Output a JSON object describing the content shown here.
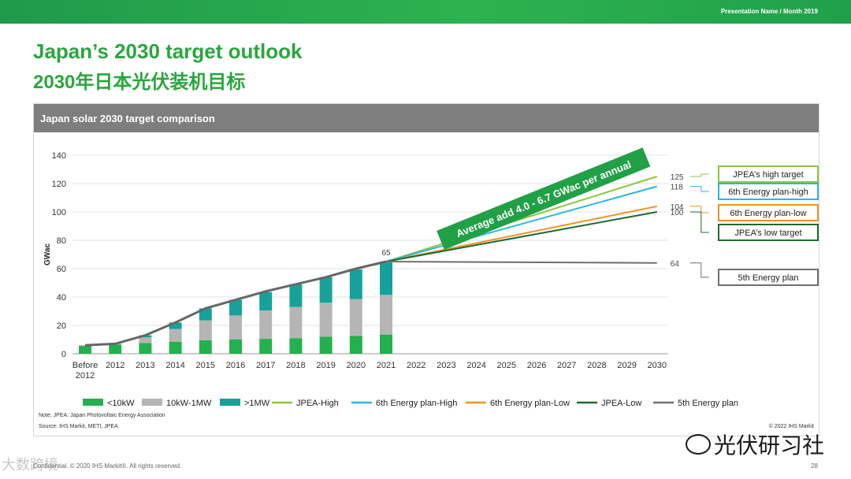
{
  "header": {
    "presentation_name": "Presentation Name / Month 2019"
  },
  "title_en": "Japan’s 2030 target outlook",
  "title_cn": "2030年日本光伏装机目标",
  "panel_title": "Japan solar 2030 target comparison",
  "colors": {
    "lt10kw": "#22b14c",
    "mid": "#b5b5b5",
    "gt1mw": "#16a29a",
    "jpea_high": "#8dc63f",
    "plan6_high": "#2cb5e3",
    "plan6_low": "#f0922b",
    "jpea_low": "#1d6b2f",
    "plan5": "#6f6f6f",
    "total_line": "#666666",
    "banner": "#21a047"
  },
  "chart_data": {
    "type": "bar",
    "ylabel": "GWac",
    "ylim": [
      0,
      140
    ],
    "yticks": [
      0,
      20,
      40,
      60,
      80,
      100,
      120,
      140
    ],
    "categories": [
      "Before 2012",
      "2012",
      "2013",
      "2014",
      "2015",
      "2016",
      "2017",
      "2018",
      "2019",
      "2020",
      "2021",
      "2022",
      "2023",
      "2024",
      "2025",
      "2026",
      "2027",
      "2028",
      "2029",
      "2030"
    ],
    "stacked_series": [
      {
        "name": "<10kW",
        "color_key": "lt10kw",
        "values": [
          5.5,
          6.5,
          7.5,
          8.5,
          9.5,
          10,
          10.5,
          11,
          12,
          12.5,
          13.5
        ]
      },
      {
        "name": "10kW-1MW",
        "color_key": "mid",
        "values": [
          0.5,
          0.5,
          4,
          9,
          14,
          17,
          20,
          22,
          24,
          26,
          28
        ]
      },
      {
        "name": ">1MW",
        "color_key": "gt1mw",
        "values": [
          0,
          0,
          1.5,
          4.5,
          8.5,
          11,
          13,
          16,
          18,
          21,
          23.5
        ]
      }
    ],
    "total_line": [
      6,
      7,
      13,
      22,
      32,
      38,
      44,
      49,
      54,
      60,
      65
    ],
    "projections": [
      {
        "name": "JPEA-High",
        "color_key": "jpea_high",
        "end_value": 125,
        "end_label": "125",
        "box_label": "JPEA’s high target"
      },
      {
        "name": "6th Energy plan-High",
        "color_key": "plan6_high",
        "end_value": 118,
        "end_label": "118",
        "box_label": "6th Energy plan-high"
      },
      {
        "name": "6th Energy plan-Low",
        "color_key": "plan6_low",
        "end_value": 104,
        "end_label": "104",
        "box_label": "6th Energy plan-low"
      },
      {
        "name": "JPEA-Low",
        "color_key": "jpea_low",
        "end_value": 100,
        "end_label": "100",
        "box_label": "JPEA’s low target"
      },
      {
        "name": "5th Energy plan",
        "color_key": "plan5",
        "end_value": 64,
        "end_label": "64",
        "box_label": "5th Energy plan"
      }
    ],
    "annotation_2021": "65",
    "banner": "Average add 4.0 - 6.7 GWac per annual",
    "legend": [
      {
        "label": "<10kW",
        "kind": "box",
        "color_key": "lt10kw"
      },
      {
        "label": "10kW-1MW",
        "kind": "box",
        "color_key": "mid"
      },
      {
        "label": ">1MW",
        "kind": "box",
        "color_key": "gt1mw"
      },
      {
        "label": "JPEA-High",
        "kind": "line",
        "color_key": "jpea_high"
      },
      {
        "label": "6th Energy plan-High",
        "kind": "line",
        "color_key": "plan6_high"
      },
      {
        "label": "6th Energy plan-Low",
        "kind": "line",
        "color_key": "plan6_low"
      },
      {
        "label": "JPEA-Low",
        "kind": "line",
        "color_key": "jpea_low"
      },
      {
        "label": "5th Energy plan",
        "kind": "line",
        "color_key": "plan5"
      }
    ]
  },
  "notes": {
    "note": "Note: JPEA: Japan Photovoltaic Energy Association",
    "source": "Source: IHS Markit, METI, JPEA",
    "copyright": "© 2022 IHS Markit"
  },
  "footer": {
    "confidential": "Confidential. © 2020 IHS Markit®. All rights reserved.",
    "page": "28"
  },
  "watermarks": {
    "brand": "光伏研习社",
    "secondary": "大数跨境"
  }
}
